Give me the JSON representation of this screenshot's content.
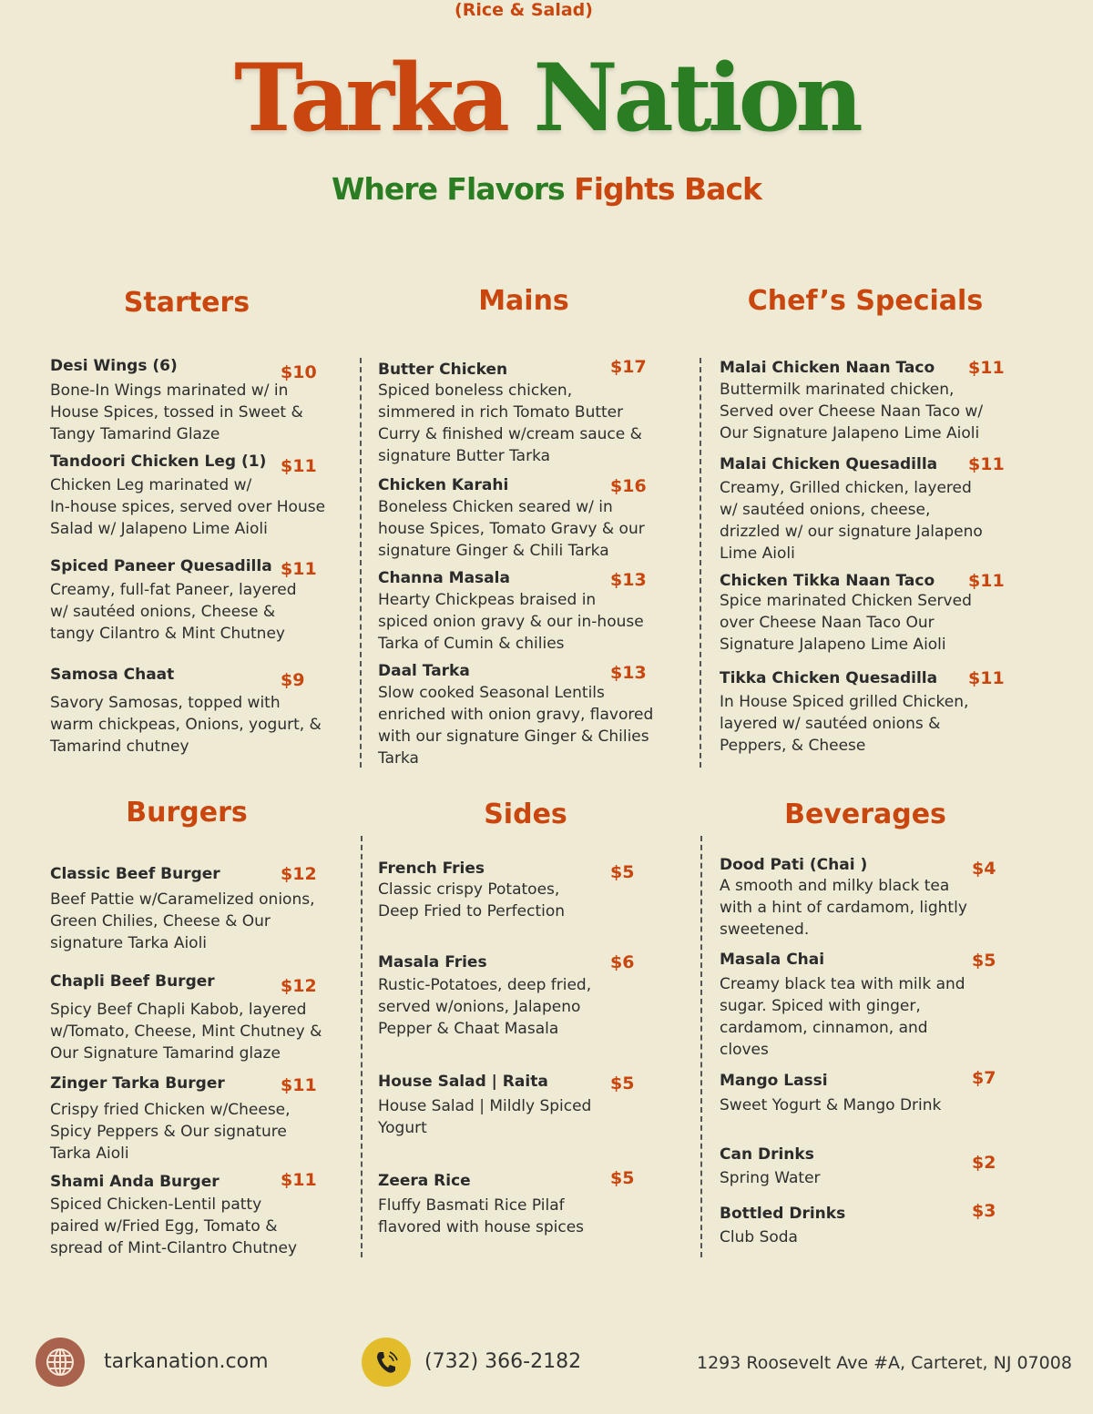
{
  "header": {
    "brand_part1": "Tarka",
    "brand_part2": "Nation",
    "tagline_part1": "Where Flavors",
    "tagline_part2": "Fights Back"
  },
  "colors": {
    "accent_orange": "#c9470f",
    "accent_green": "#2a7d22",
    "background": "#eeead4",
    "phone_icon_bg": "#e3bc2c",
    "globe_icon_bg": "#a9624b"
  },
  "sections": [
    {
      "title": "Starters",
      "items": [
        {
          "name": "Desi Wings (6)",
          "price": "$10",
          "desc": [
            "Bone-In Wings marinated w/ in",
            "House Spices, tossed in Sweet &",
            "Tangy Tamarind Glaze"
          ]
        },
        {
          "name": "Tandoori Chicken Leg (1)",
          "price": "$11",
          "desc": [
            "Chicken Leg marinated w/",
            "In-house spices, served over House",
            "Salad w/ Jalapeno Lime Aioli"
          ]
        },
        {
          "name": "Spiced Paneer Quesadilla",
          "price": "$11",
          "desc": [
            "Creamy, full-fat Paneer, layered",
            "w/ sautéed onions, Cheese &",
            "tangy Cilantro & Mint Chutney"
          ]
        },
        {
          "name": "Samosa Chaat",
          "price": "$9",
          "desc": [
            "Savory Samosas, topped with",
            "warm chickpeas, Onions, yogurt, &",
            "Tamarind chutney"
          ]
        }
      ]
    },
    {
      "title": "Mains",
      "subtitle": "(Rice & Salad)",
      "items": [
        {
          "name": "Butter Chicken",
          "price": "$17",
          "desc": [
            "Spiced boneless chicken,",
            "simmered in rich Tomato Butter",
            "Curry & finished w/cream sauce &",
            "signature Butter Tarka"
          ]
        },
        {
          "name": "Chicken Karahi",
          "price": "$16",
          "desc": [
            "Boneless Chicken seared w/ in",
            "house Spices, Tomato Gravy & our",
            "signature Ginger & Chili Tarka"
          ]
        },
        {
          "name": "Channa Masala",
          "price": "$13",
          "desc": [
            "Hearty Chickpeas braised in",
            "spiced onion gravy & our in-house",
            "Tarka of Cumin & chilies"
          ]
        },
        {
          "name": "Daal Tarka",
          "price": "$13",
          "desc": [
            "Slow cooked Seasonal Lentils",
            "enriched with onion gravy, flavored",
            "with our signature Ginger & Chilies",
            "Tarka"
          ]
        }
      ]
    },
    {
      "title": "Chef’s Specials",
      "items": [
        {
          "name": "Malai Chicken Naan Taco",
          "price": "$11",
          "desc": [
            "Buttermilk marinated chicken,",
            "Served over Cheese Naan Taco w/",
            "Our Signature Jalapeno Lime Aioli"
          ]
        },
        {
          "name": "Malai Chicken Quesadilla",
          "price": "$11",
          "desc": [
            "Creamy, Grilled chicken, layered",
            "w/ sautéed onions, cheese,",
            "drizzled w/ our signature Jalapeno",
            "Lime Aioli"
          ]
        },
        {
          "name": "Chicken Tikka Naan Taco",
          "price": "$11",
          "desc": [
            "Spice marinated Chicken Served",
            "over Cheese Naan Taco Our",
            "Signature Jalapeno Lime Aioli"
          ]
        },
        {
          "name": "Tikka Chicken Quesadilla",
          "price": "$11",
          "desc": [
            "In House Spiced grilled Chicken,",
            "layered w/ sautéed onions &",
            "Peppers, & Cheese"
          ]
        }
      ]
    },
    {
      "title": "Burgers",
      "items": [
        {
          "name": "Classic Beef Burger",
          "price": "$12",
          "desc": [
            "Beef Pattie w/Caramelized onions,",
            "Green Chilies, Cheese & Our",
            "signature Tarka Aioli"
          ]
        },
        {
          "name": "Chapli Beef Burger",
          "price": "$12",
          "desc": [
            "Spicy Beef Chapli Kabob, layered",
            "w/Tomato, Cheese, Mint Chutney &",
            "Our Signature Tamarind glaze"
          ]
        },
        {
          "name": "Zinger Tarka Burger",
          "price": "$11",
          "desc": [
            "Crispy fried Chicken w/Cheese,",
            "Spicy Peppers & Our signature",
            "Tarka Aioli"
          ]
        },
        {
          "name": "Shami Anda Burger",
          "price": "$11",
          "desc": [
            "Spiced Chicken-Lentil patty",
            "paired w/Fried Egg, Tomato &",
            "spread of Mint-Cilantro Chutney"
          ]
        }
      ]
    },
    {
      "title": "Sides",
      "items": [
        {
          "name": "French Fries",
          "price": "$5",
          "desc": [
            "Classic crispy Potatoes,",
            "Deep Fried to Perfection"
          ]
        },
        {
          "name": "Masala Fries",
          "price": "$6",
          "desc": [
            "Rustic-Potatoes, deep fried,",
            "served w/onions, Jalapeno",
            "Pepper & Chaat Masala"
          ]
        },
        {
          "name": "House Salad | Raita",
          "price": "$5",
          "desc": [
            "House Salad | Mildly Spiced",
            "Yogurt"
          ]
        },
        {
          "name": "Zeera Rice",
          "price": "$5",
          "desc": [
            "Fluffy Basmati Rice Pilaf",
            "flavored with house spices"
          ]
        }
      ]
    },
    {
      "title": "Beverages",
      "items": [
        {
          "name": "Dood Pati (Chai )",
          "price": "$4",
          "desc": [
            "A smooth and milky black tea",
            "with a hint of cardamom, lightly",
            "sweetened."
          ]
        },
        {
          "name": "Masala Chai",
          "price": "$5",
          "desc": [
            "Creamy black tea with milk and",
            "sugar. Spiced with ginger,",
            "cardamom, cinnamon, and",
            "cloves"
          ]
        },
        {
          "name": "Mango Lassi",
          "price": "$7",
          "desc": [
            "Sweet Yogurt & Mango Drink"
          ]
        },
        {
          "name": "Can Drinks",
          "price": "$2",
          "desc": [
            "Spring Water"
          ]
        },
        {
          "name": "Bottled Drinks",
          "price": "$3",
          "desc": [
            "Club Soda"
          ]
        }
      ]
    }
  ],
  "footer": {
    "website": "tarkanation.com",
    "phone": "(732) 366-2182",
    "address": "1293 Roosevelt Ave #A, Carteret, NJ 07008",
    "website_icon": "globe-icon",
    "phone_icon": "phone-icon"
  }
}
